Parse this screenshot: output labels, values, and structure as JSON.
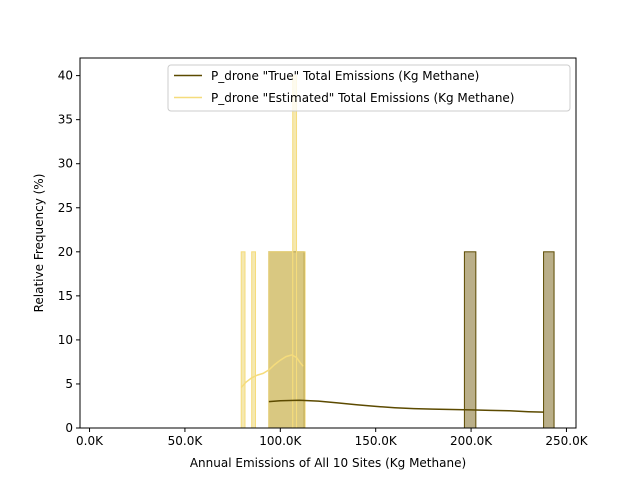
{
  "chart_data": {
    "type": "histogram",
    "xlabel": "Annual Emissions of All 10 Sites (Kg Methane)",
    "ylabel": "Relative Frequency (%)",
    "xlim": [
      -5000,
      255000
    ],
    "ylim": [
      0,
      42
    ],
    "x_ticks": [
      {
        "value": 0,
        "label": "0.0K"
      },
      {
        "value": 50000,
        "label": "50.0K"
      },
      {
        "value": 100000,
        "label": "100.0K"
      },
      {
        "value": 150000,
        "label": "150.0K"
      },
      {
        "value": 200000,
        "label": "200.0K"
      },
      {
        "value": 250000,
        "label": "250.0K"
      }
    ],
    "y_ticks": [
      0,
      5,
      10,
      15,
      20,
      25,
      30,
      35,
      40
    ],
    "grid": false,
    "legend_position": "top-right",
    "series": [
      {
        "name": "P_drone \"True\" Total Emissions (Kg Methane)",
        "color": "#5c4a00",
        "bar_fill": "#aea174",
        "bars": [
          {
            "x0": 94000,
            "x1": 112500,
            "value": 20
          },
          {
            "x0": 196500,
            "x1": 202500,
            "value": 20
          },
          {
            "x0": 238000,
            "x1": 243500,
            "value": 20
          }
        ],
        "kde": [
          [
            94000,
            3.0
          ],
          [
            100000,
            3.1
          ],
          [
            110000,
            3.15
          ],
          [
            120000,
            3.05
          ],
          [
            130000,
            2.85
          ],
          [
            140000,
            2.65
          ],
          [
            150000,
            2.45
          ],
          [
            160000,
            2.3
          ],
          [
            170000,
            2.2
          ],
          [
            180000,
            2.15
          ],
          [
            190000,
            2.1
          ],
          [
            200000,
            2.05
          ],
          [
            210000,
            2.0
          ],
          [
            220000,
            1.95
          ],
          [
            230000,
            1.85
          ],
          [
            238000,
            1.8
          ]
        ]
      },
      {
        "name": "P_drone \"Estimated\" Total Emissions (Kg Methane)",
        "color": "#f5dc7c",
        "bar_fill": "#efd97c",
        "bars": [
          {
            "x0": 79500,
            "x1": 81500,
            "value": 20
          },
          {
            "x0": 85000,
            "x1": 87000,
            "value": 20
          },
          {
            "x0": 94000,
            "x1": 106500,
            "value": 20
          },
          {
            "x0": 106500,
            "x1": 108500,
            "value": 40
          },
          {
            "x0": 108500,
            "x1": 113000,
            "value": 20
          }
        ],
        "kde": [
          [
            79500,
            4.6
          ],
          [
            82000,
            5.2
          ],
          [
            85000,
            5.7
          ],
          [
            88000,
            6.0
          ],
          [
            91000,
            6.2
          ],
          [
            94000,
            6.6
          ],
          [
            97000,
            7.2
          ],
          [
            100000,
            7.7
          ],
          [
            103000,
            8.1
          ],
          [
            106000,
            8.3
          ],
          [
            108500,
            8.0
          ],
          [
            110500,
            7.4
          ],
          [
            112000,
            7.0
          ]
        ]
      }
    ]
  }
}
